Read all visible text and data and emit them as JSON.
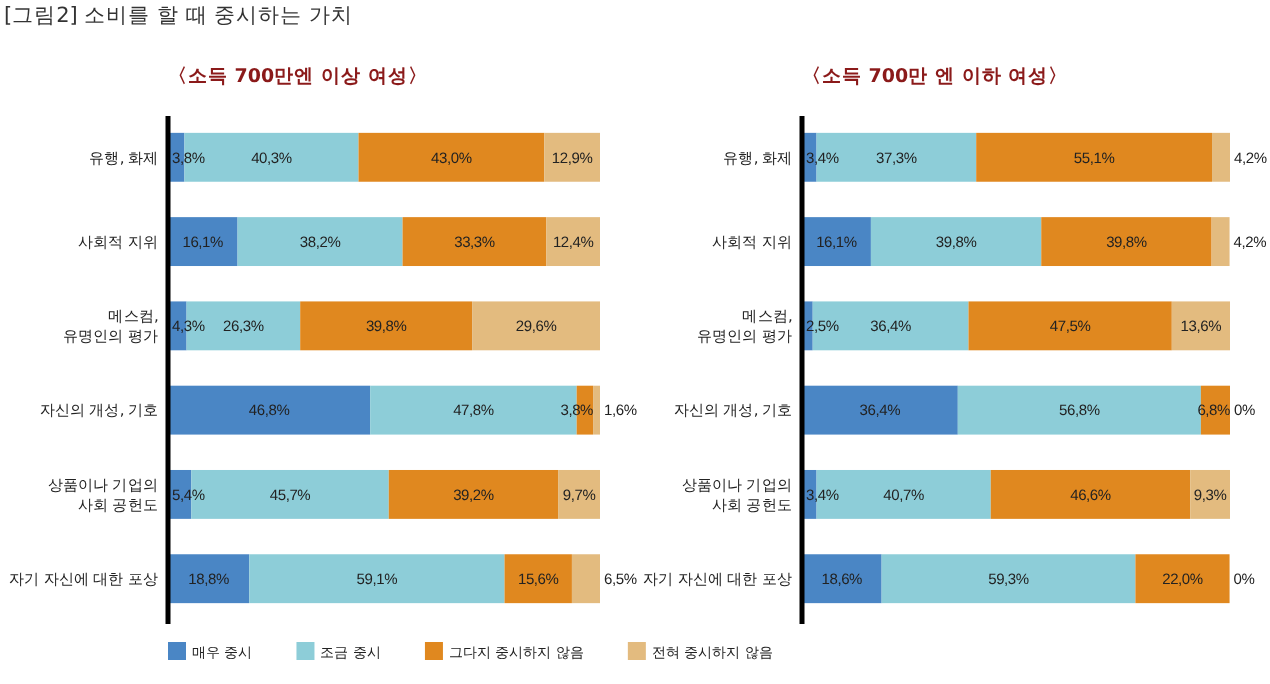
{
  "chart_data": [
    {
      "type": "bar",
      "orientation": "horizontal",
      "stacked": true,
      "title": "[그림2] 소비를 할 때 중시하는 가치",
      "subtitle": "〈소득 700만엔 이상 여성〉",
      "categories": [
        "유행, 화제",
        "사회적 지위",
        "메스컴,\n유명인의 평가",
        "자신의 개성, 기호",
        "상품이나 기업의\n사회 공헌도",
        "자기 자신에 대한 포상"
      ],
      "xlim": [
        0,
        100
      ],
      "tick_labels": "y",
      "legend": "bottom",
      "series": [
        {
          "name": "매우 중시",
          "color": "#4a86c5",
          "values": [
            3.8,
            16.1,
            4.3,
            46.8,
            5.4,
            18.8
          ],
          "value_labels": [
            "3,8%",
            "16,1%",
            "4,3%",
            "46,8%",
            "5,4%",
            "18,8%"
          ]
        },
        {
          "name": "조금 중시",
          "color": "#8dcdd8",
          "values": [
            40.3,
            38.2,
            26.3,
            47.8,
            45.7,
            59.1
          ],
          "value_labels": [
            "40,3%",
            "38,2%",
            "26,3%",
            "47,8%",
            "45,7%",
            "59,1%"
          ]
        },
        {
          "name": "그다지 중시하지 않음",
          "color": "#e0881f",
          "values": [
            43.0,
            33.3,
            39.8,
            3.8,
            39.2,
            15.6
          ],
          "value_labels": [
            "43,0%",
            "33,3%",
            "39,8%",
            "3,8%",
            "39,2%",
            "15,6%"
          ]
        },
        {
          "name": "전혀 중시하지 않음",
          "color": "#e3bb7f",
          "values": [
            12.9,
            12.4,
            29.6,
            1.6,
            9.7,
            6.5
          ],
          "value_labels": [
            "12,9%",
            "12,4%",
            "29,6%",
            "1,6%",
            "9,7%",
            "6,5%"
          ]
        }
      ]
    },
    {
      "type": "bar",
      "orientation": "horizontal",
      "stacked": true,
      "subtitle": "〈소득 700만 엔 이하 여성〉",
      "categories": [
        "유행, 화제",
        "사회적 지위",
        "메스컴,\n유명인의 평가",
        "자신의 개성, 기호",
        "상품이나 기업의\n사회 공헌도",
        "자기 자신에 대한 포상"
      ],
      "xlim": [
        0,
        100
      ],
      "tick_labels": "y",
      "series": [
        {
          "color": "#4a86c5",
          "values": [
            3.4,
            16.1,
            2.5,
            36.4,
            3.4,
            18.6
          ],
          "value_labels": [
            "3,4%",
            "16,1%",
            "2,5%",
            "36,4%",
            "3,4%",
            "18,6%"
          ]
        },
        {
          "color": "#8dcdd8",
          "values": [
            37.3,
            39.8,
            36.4,
            56.8,
            40.7,
            59.3
          ],
          "value_labels": [
            "37,3%",
            "39,8%",
            "36,4%",
            "56,8%",
            "40,7%",
            "59,3%"
          ]
        },
        {
          "color": "#e0881f",
          "values": [
            55.1,
            39.8,
            47.5,
            6.8,
            46.6,
            22.0
          ],
          "value_labels": [
            "55,1%",
            "39,8%",
            "47,5%",
            "6,8%",
            "46,6%",
            "22,0%"
          ]
        },
        {
          "color": "#e3bb7f",
          "values": [
            4.2,
            4.2,
            13.6,
            0,
            9.3,
            0
          ],
          "value_labels": [
            "4,2%",
            "4,2%",
            "13,6%",
            "0%",
            "9,3%",
            "0%"
          ]
        }
      ]
    }
  ]
}
